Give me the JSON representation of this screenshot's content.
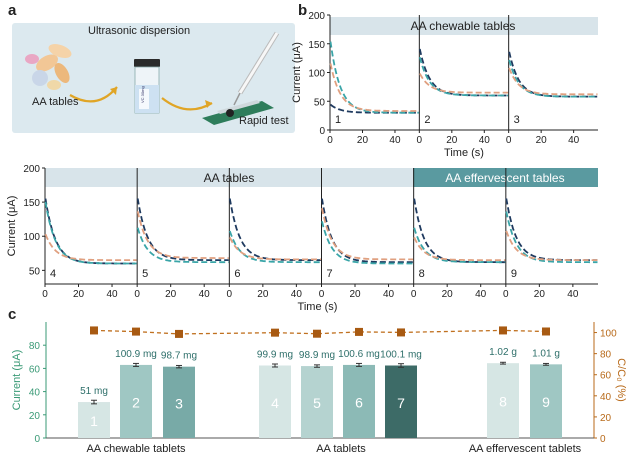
{
  "panel_a": {
    "letter": "a",
    "label_ultrasonic": "Ultrasonic dispersion",
    "label_tables": "AA tables",
    "label_rapid": "Rapid test",
    "vial_label": "VC 30mg"
  },
  "panel_b": {
    "letter": "b",
    "top_header": "AA chewable tables",
    "bottom_header_left": "AA tables",
    "bottom_header_right": "AA effervescent tables",
    "ylabel": "Current (μA)",
    "xlabel": "Time (s)",
    "yticks_top": [
      "200",
      "150",
      "100",
      "50",
      "0"
    ],
    "yticks_bottom": [
      "200",
      "150",
      "100",
      "50"
    ],
    "xticks": [
      "0",
      "20",
      "40"
    ],
    "colors": {
      "dark": "#1f3a5f",
      "teal": "#3aa5a8",
      "salmon": "#e0a080"
    }
  },
  "panel_c": {
    "letter": "c",
    "ylabel": "Current (μA)",
    "y2label": "C/C₀ (%)",
    "yticks": [
      "0",
      "20",
      "40",
      "60",
      "80"
    ],
    "y2ticks": [
      "0",
      "20",
      "40",
      "60",
      "80",
      "100"
    ],
    "groups": [
      "AA chewable tablets",
      "AA tablets",
      "AA effervescent tablets"
    ]
  },
  "chart_data": [
    {
      "type": "line",
      "title": "AA chewable tables",
      "xlabel": "Time (s)",
      "ylabel": "Current (μA)",
      "xlim": [
        0,
        55
      ],
      "ylim": [
        0,
        200
      ],
      "panels": [
        {
          "label": "1",
          "series": [
            {
              "color": "dark",
              "start": 45,
              "end": 30
            },
            {
              "color": "teal",
              "start": 160,
              "end": 30
            },
            {
              "color": "salmon",
              "start": 120,
              "end": 33
            }
          ]
        },
        {
          "label": "2",
          "series": [
            {
              "color": "dark",
              "start": 145,
              "end": 60
            },
            {
              "color": "teal",
              "start": 130,
              "end": 60
            },
            {
              "color": "salmon",
              "start": 100,
              "end": 65
            }
          ]
        },
        {
          "label": "3",
          "series": [
            {
              "color": "dark",
              "start": 140,
              "end": 58
            },
            {
              "color": "teal",
              "start": 125,
              "end": 58
            },
            {
              "color": "salmon",
              "start": 110,
              "end": 62
            }
          ]
        }
      ]
    },
    {
      "type": "line",
      "title": "AA tables / AA effervescent tables",
      "xlabel": "Time (s)",
      "ylabel": "Current (μA)",
      "xlim": [
        0,
        55
      ],
      "ylim": [
        30,
        200
      ],
      "panels": [
        {
          "label": "4",
          "series": [
            {
              "color": "dark",
              "start": 160,
              "end": 60
            },
            {
              "color": "teal",
              "start": 155,
              "end": 60
            },
            {
              "color": "salmon",
              "start": 105,
              "end": 65
            }
          ]
        },
        {
          "label": "5",
          "series": [
            {
              "color": "dark",
              "start": 160,
              "end": 65
            },
            {
              "color": "teal",
              "start": 115,
              "end": 62
            },
            {
              "color": "salmon",
              "start": 140,
              "end": 68
            }
          ]
        },
        {
          "label": "6",
          "series": [
            {
              "color": "dark",
              "start": 160,
              "end": 65
            },
            {
              "color": "teal",
              "start": 110,
              "end": 62
            },
            {
              "color": "salmon",
              "start": 100,
              "end": 66
            }
          ]
        },
        {
          "label": "7",
          "series": [
            {
              "color": "dark",
              "start": 160,
              "end": 62
            },
            {
              "color": "teal",
              "start": 125,
              "end": 60
            },
            {
              "color": "salmon",
              "start": 145,
              "end": 66
            }
          ]
        },
        {
          "label": "8",
          "series": [
            {
              "color": "dark",
              "start": 160,
              "end": 62
            },
            {
              "color": "teal",
              "start": 115,
              "end": 62
            },
            {
              "color": "salmon",
              "start": 100,
              "end": 65
            }
          ]
        },
        {
          "label": "9",
          "series": [
            {
              "color": "dark",
              "start": 160,
              "end": 65
            },
            {
              "color": "teal",
              "start": 140,
              "end": 62
            },
            {
              "color": "salmon",
              "start": 110,
              "end": 65
            }
          ]
        }
      ]
    },
    {
      "type": "bar",
      "ylabel": "Current (μA)",
      "y2label": "C/C₀ (%)",
      "ylim": [
        0,
        100
      ],
      "y2lim": [
        0,
        110
      ],
      "bars": [
        {
          "label": "1",
          "value": 31,
          "annotation": "51 mg",
          "color": "#d6e6e4",
          "errbar": 1.2
        },
        {
          "label": "2",
          "value": 63,
          "annotation": "100.9 mg",
          "color": "#9fc7c3",
          "errbar": 1.0
        },
        {
          "label": "3",
          "value": 61.5,
          "annotation": "98.7 mg",
          "color": "#78aaa7",
          "errbar": 0.8
        },
        {
          "label": "4",
          "value": 62.5,
          "annotation": "99.9 mg",
          "color": "#d6e6e4",
          "errbar": 1.0
        },
        {
          "label": "5",
          "value": 62,
          "annotation": "98.9 mg",
          "color": "#b5d3d0",
          "errbar": 0.8
        },
        {
          "label": "6",
          "value": 63,
          "annotation": "100.6 mg",
          "color": "#8cbab6",
          "errbar": 1.0
        },
        {
          "label": "7",
          "value": 62.5,
          "annotation": "100.1 mg",
          "color": "#3d6b67",
          "errbar": 1.2
        },
        {
          "label": "8",
          "value": 64.5,
          "annotation": "1.02 g",
          "color": "#d6e6e4",
          "errbar": 0.6
        },
        {
          "label": "9",
          "value": 63.5,
          "annotation": "1.01 g",
          "color": "#9fc7c3",
          "errbar": 0.6
        }
      ],
      "ratio_points": [
        102,
        100.9,
        98.7,
        99.9,
        98.9,
        100.6,
        100.1,
        102,
        101
      ]
    }
  ]
}
